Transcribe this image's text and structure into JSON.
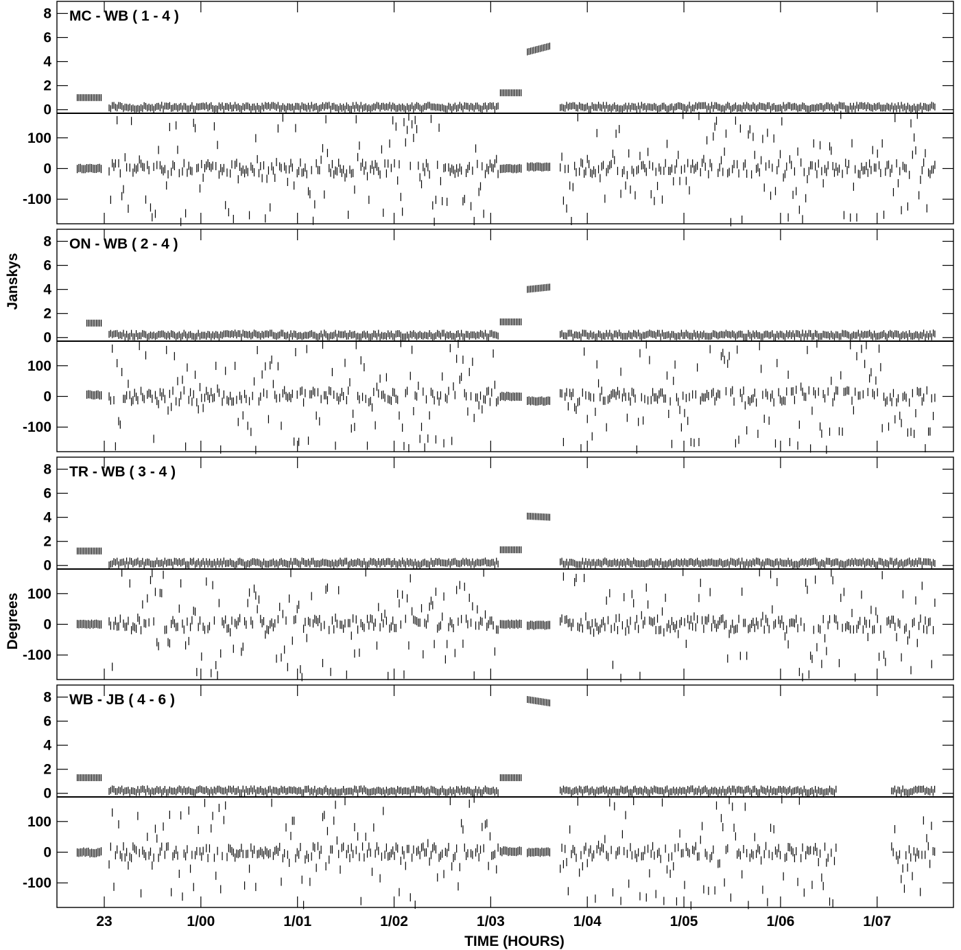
{
  "chart_data": {
    "type": "scatter",
    "xlabel": "TIME (HOURS)",
    "x_ticks": [
      "23",
      "1/00",
      "1/01",
      "1/02",
      "1/03",
      "1/04",
      "1/05",
      "1/06",
      "1/07"
    ],
    "x_tick_hours": [
      23,
      24,
      25,
      26,
      27,
      28,
      29,
      30,
      31
    ],
    "xlim_hours": [
      22.51,
      31.79
    ],
    "amplitude_label": "Janskys",
    "phase_label": "Degrees",
    "amp_ylim": [
      -0.3,
      9.0
    ],
    "amp_ticks": [
      "8",
      "6",
      "4",
      "2",
      "0"
    ],
    "amp_tick_values": [
      8,
      6,
      4,
      2,
      0
    ],
    "phase_ylim": [
      -180,
      180
    ],
    "phase_ticks": [
      "100",
      "0",
      "-100"
    ],
    "phase_tick_values": [
      100,
      0,
      -100
    ],
    "baselines": [
      {
        "name": "MC - WB ( 1 - 4 )",
        "segments": [
          {
            "start": 22.72,
            "end": 22.98,
            "amp": 1.0,
            "phase": 0,
            "spread": 4
          },
          {
            "start": 23.05,
            "end": 27.08,
            "amp": 0.2,
            "phase": 0,
            "scatter": true
          },
          {
            "start": 27.1,
            "end": 27.33,
            "amp": 1.4,
            "phase": 0,
            "spread": 4
          },
          {
            "start": 27.38,
            "end": 27.62,
            "amp": 4.8,
            "amp_end": 5.3,
            "phase": 5,
            "spread": 4
          },
          {
            "start": 27.72,
            "end": 31.6,
            "amp": 0.2,
            "phase": 0,
            "scatter": true
          }
        ]
      },
      {
        "name": "ON - WB ( 2 - 4 )",
        "segments": [
          {
            "start": 22.82,
            "end": 22.98,
            "amp": 1.2,
            "phase": 5,
            "spread": 4
          },
          {
            "start": 23.05,
            "end": 27.08,
            "amp": 0.2,
            "phase": 0,
            "scatter": true
          },
          {
            "start": 27.1,
            "end": 27.33,
            "amp": 1.3,
            "phase": 0,
            "spread": 4
          },
          {
            "start": 27.38,
            "end": 27.62,
            "amp": 4.0,
            "amp_end": 4.2,
            "phase": -15,
            "spread": 4
          },
          {
            "start": 27.72,
            "end": 31.6,
            "amp": 0.2,
            "phase": 0,
            "scatter": true
          }
        ]
      },
      {
        "name": "TR - WB ( 3 - 4 )",
        "segments": [
          {
            "start": 22.72,
            "end": 22.98,
            "amp": 1.2,
            "phase": 0,
            "spread": 4
          },
          {
            "start": 23.05,
            "end": 27.08,
            "amp": 0.2,
            "phase": 0,
            "scatter": true
          },
          {
            "start": 27.1,
            "end": 27.33,
            "amp": 1.3,
            "phase": 0,
            "spread": 4
          },
          {
            "start": 27.38,
            "end": 27.62,
            "amp": 4.1,
            "amp_end": 4.0,
            "phase": -3,
            "spread": 4
          },
          {
            "start": 27.72,
            "end": 31.6,
            "amp": 0.2,
            "phase": 0,
            "scatter": true
          }
        ]
      },
      {
        "name": "WB - JB ( 4 - 6 )",
        "segments": [
          {
            "start": 22.72,
            "end": 22.98,
            "amp": 1.3,
            "phase": 0,
            "spread": 8
          },
          {
            "start": 23.05,
            "end": 27.08,
            "amp": 0.2,
            "phase": 0,
            "scatter": true
          },
          {
            "start": 27.1,
            "end": 27.33,
            "amp": 1.3,
            "phase": 3,
            "spread": 6
          },
          {
            "start": 27.38,
            "end": 27.62,
            "amp": 7.8,
            "amp_end": 7.5,
            "phase": 0,
            "spread": 6
          },
          {
            "start": 27.72,
            "end": 30.58,
            "amp": 0.2,
            "phase": 0,
            "scatter": true
          },
          {
            "start": 31.15,
            "end": 31.6,
            "amp": 0.2,
            "phase": 0,
            "scatter": true
          }
        ]
      }
    ]
  }
}
